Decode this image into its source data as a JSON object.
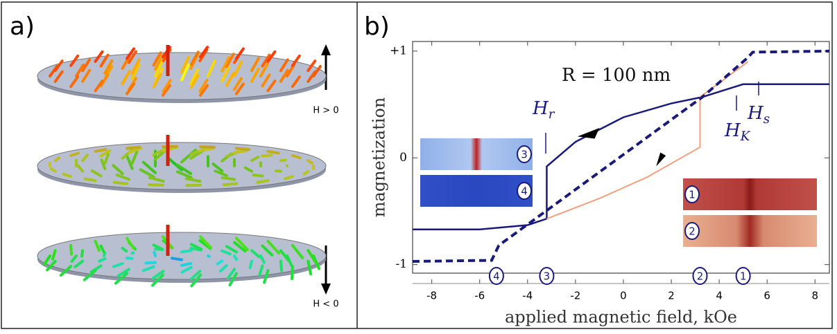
{
  "panel_a": {
    "label": "a)",
    "field_labels": [
      "H > 0",
      "H < 0"
    ]
  },
  "chart_data": {
    "type": "line",
    "panel_label": "b)",
    "x_label": "applied magnetic field, kOe",
    "y_label": "magnetization",
    "xlim": [
      -8.8,
      8.6
    ],
    "ylim": [
      -1.08,
      1.09
    ],
    "xticks": [
      -8,
      -6,
      -4,
      -2,
      0,
      2,
      4,
      6,
      8
    ],
    "yticks": [
      {
        "value": 1,
        "label": "+1"
      },
      0,
      -1
    ],
    "series": [
      {
        "color": "#1a1a7a",
        "dash": false,
        "x": [
          -8.8,
          -6,
          -4,
          -3.2,
          -3.2,
          -2,
          0,
          2,
          3.3,
          5,
          8.6
        ],
        "values": [
          -0.67,
          -0.67,
          -0.63,
          -0.57,
          -0.08,
          0.15,
          0.38,
          0.51,
          0.57,
          0.69,
          0.69
        ]
      },
      {
        "color": "#f0a080",
        "dash": false,
        "x": [
          -3.2,
          -1,
          1,
          3.2,
          3.2,
          5.2
        ],
        "values": [
          -0.57,
          -0.38,
          -0.18,
          0.1,
          0.57,
          0.9
        ]
      },
      {
        "color": "#1a1a7a",
        "dash": true,
        "x": [
          -8.8,
          -5.5,
          -5.2,
          3.3,
          5.2,
          5.4,
          8.6
        ],
        "values": [
          -0.97,
          -0.96,
          -0.82,
          0.57,
          0.94,
          0.99,
          1.0
        ]
      }
    ],
    "annotations": {
      "radius": "R = 100 nm",
      "h_r": {
        "symbol": "H",
        "sub": "r"
      },
      "h_s": {
        "symbol": "H",
        "sub": "s"
      },
      "h_k": {
        "symbol": "H",
        "sub": "K"
      }
    },
    "axis_markers": [
      {
        "label": "4",
        "x": -5.3
      },
      {
        "label": "3",
        "x": -3.2
      },
      {
        "label": "2",
        "x": 3.2
      },
      {
        "label": "1",
        "x": 5.0
      }
    ],
    "insets": [
      "3",
      "4",
      "1",
      "2"
    ]
  }
}
